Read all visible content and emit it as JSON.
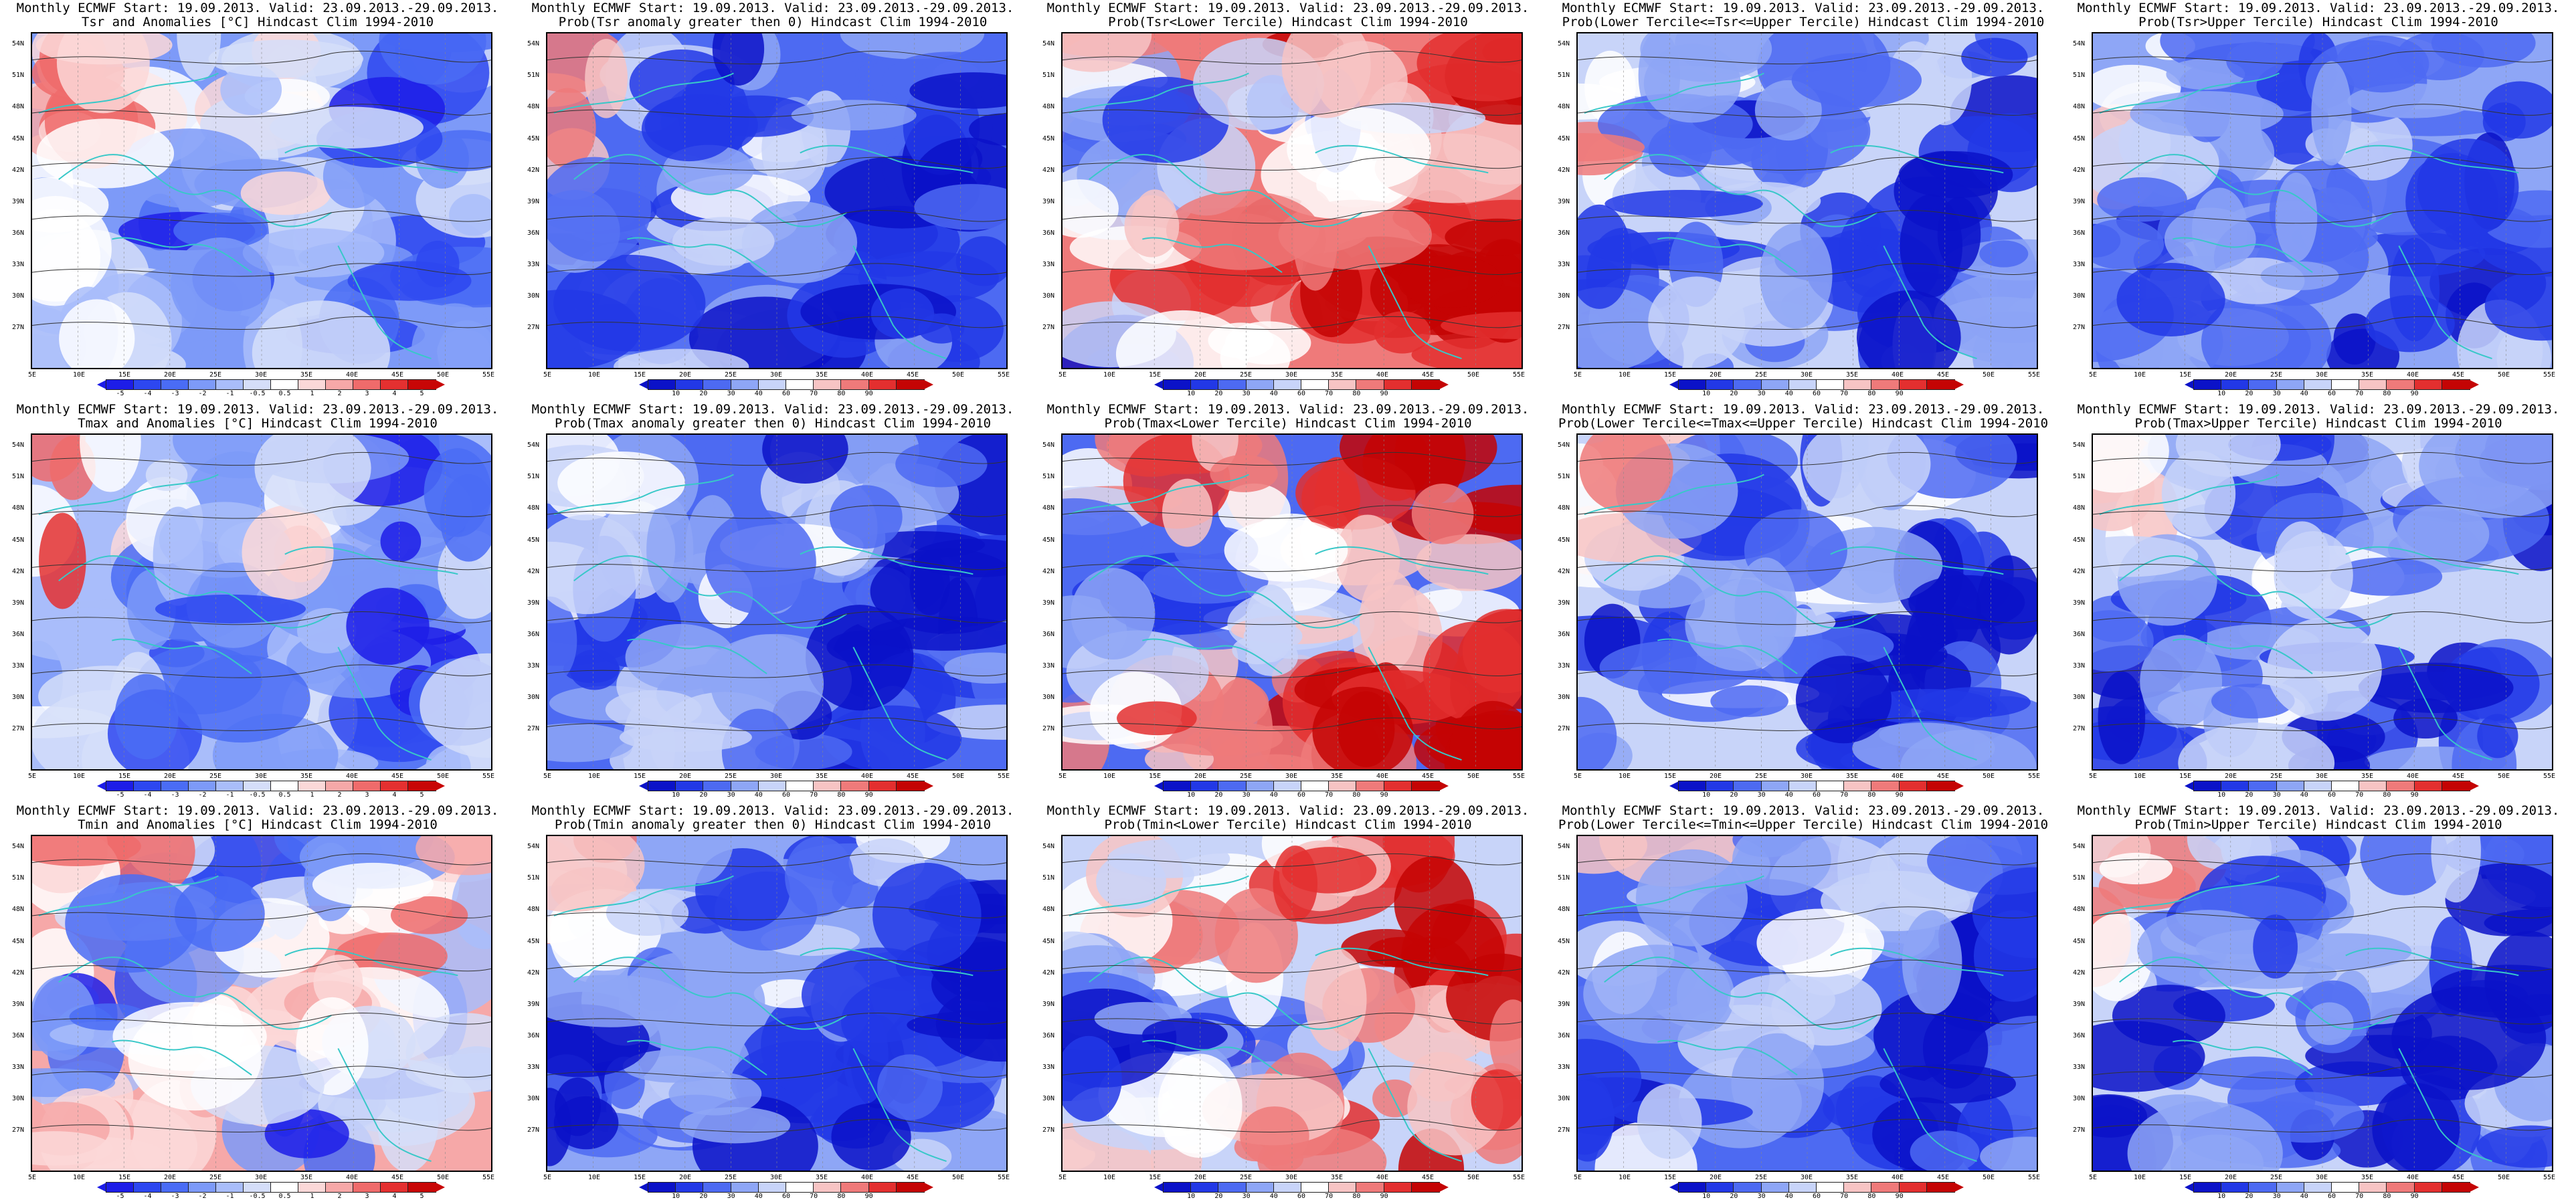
{
  "colors": {
    "anomaly_scale": [
      "#1d1de8",
      "#2d47f0",
      "#4a6cf5",
      "#7d9af8",
      "#a9bdfa",
      "#d5def9",
      "#ffffff",
      "#fbd8d8",
      "#f6a8a8",
      "#ef6b6b",
      "#e43030",
      "#c80606"
    ],
    "prob_scale": [
      "#0b12c8",
      "#2238e6",
      "#4d6af2",
      "#8ea6f6",
      "#c8d4f9",
      "#ffffff",
      "#f7c4c4",
      "#ef7a7a",
      "#e32f2f",
      "#c40404"
    ],
    "coast": "#38c8c8",
    "contour": "#333333"
  },
  "map": {
    "lat_labels": [
      "54N",
      "51N",
      "48N",
      "45N",
      "42N",
      "39N",
      "36N",
      "33N",
      "30N",
      "27N"
    ],
    "lon_labels": [
      "5E",
      "10E",
      "15E",
      "20E",
      "25E",
      "30E",
      "35E",
      "40E",
      "45E",
      "50E",
      "55E"
    ]
  },
  "colorbars": {
    "anomaly": [
      "-5",
      "-4",
      "-3",
      "-2",
      "-1",
      "-0.5",
      "0.5",
      "1",
      "2",
      "3",
      "4",
      "5"
    ],
    "prob": [
      "10",
      "20",
      "30",
      "40",
      "60",
      "70",
      "80",
      "90"
    ]
  },
  "panels": [
    {
      "title1": "Monthly ECMWF Start: 19.09.2013. Valid: 23.09.2013.-29.09.2013.",
      "title2": "Tsr and Anomalies [°C] Hindcast Clim 1994-2010",
      "scale": "anomaly",
      "tone": "coolmix"
    },
    {
      "title1": "Monthly ECMWF Start: 19.09.2013. Valid: 23.09.2013.-29.09.2013.",
      "title2": "Prob(Tsr anomaly greater then 0) Hindcast Clim 1994-2010",
      "scale": "prob",
      "tone": "blue"
    },
    {
      "title1": "Monthly ECMWF Start: 19.09.2013. Valid: 23.09.2013.-29.09.2013.",
      "title2": "Prob(Tsr<Lower Tercile) Hindcast Clim 1994-2010",
      "scale": "prob",
      "tone": "red"
    },
    {
      "title1": "Monthly ECMWF Start: 19.09.2013. Valid: 23.09.2013.-29.09.2013.",
      "title2": "Prob(Lower Tercile<=Tsr<=Upper Tercile) Hindcast Clim 1994-2010",
      "scale": "prob",
      "tone": "blue"
    },
    {
      "title1": "Monthly ECMWF Start: 19.09.2013. Valid: 23.09.2013.-29.09.2013.",
      "title2": "Prob(Tsr>Upper Tercile) Hindcast Clim 1994-2010",
      "scale": "prob",
      "tone": "blue"
    },
    {
      "title1": "Monthly ECMWF Start: 19.09.2013. Valid: 23.09.2013.-29.09.2013.",
      "title2": "Tmax and Anomalies [°C] Hindcast Clim 1994-2010",
      "scale": "anomaly",
      "tone": "coolmix"
    },
    {
      "title1": "Monthly ECMWF Start: 19.09.2013. Valid: 23.09.2013.-29.09.2013.",
      "title2": "Prob(Tmax anomaly greater then 0) Hindcast Clim 1994-2010",
      "scale": "prob",
      "tone": "blue"
    },
    {
      "title1": "Monthly ECMWF Start: 19.09.2013. Valid: 23.09.2013.-29.09.2013.",
      "title2": "Prob(Tmax<Lower Tercile) Hindcast Clim 1994-2010",
      "scale": "prob",
      "tone": "red"
    },
    {
      "title1": "Monthly ECMWF Start: 19.09.2013. Valid: 23.09.2013.-29.09.2013.",
      "title2": "Prob(Lower Tercile<=Tmax<=Upper Tercile) Hindcast Clim 1994-2010",
      "scale": "prob",
      "tone": "blue"
    },
    {
      "title1": "Monthly ECMWF Start: 19.09.2013. Valid: 23.09.2013.-29.09.2013.",
      "title2": "Prob(Tmax>Upper Tercile) Hindcast Clim 1994-2010",
      "scale": "prob",
      "tone": "blue"
    },
    {
      "title1": "Monthly ECMWF Start: 19.09.2013. Valid: 23.09.2013.-29.09.2013.",
      "title2": "Tmin and Anomalies [°C] Hindcast Clim 1994-2010",
      "scale": "anomaly",
      "tone": "mixed"
    },
    {
      "title1": "Monthly ECMWF Start: 19.09.2013. Valid: 23.09.2013.-29.09.2013.",
      "title2": "Prob(Tmin anomaly greater then 0) Hindcast Clim 1994-2010",
      "scale": "prob",
      "tone": "blue"
    },
    {
      "title1": "Monthly ECMWF Start: 19.09.2013. Valid: 23.09.2013.-29.09.2013.",
      "title2": "Prob(Tmin<Lower Tercile) Hindcast Clim 1994-2010",
      "scale": "prob",
      "tone": "red"
    },
    {
      "title1": "Monthly ECMWF Start: 19.09.2013. Valid: 23.09.2013.-29.09.2013.",
      "title2": "Prob(Lower Tercile<=Tmin<=Upper Tercile) Hindcast Clim 1994-2010",
      "scale": "prob",
      "tone": "blue"
    },
    {
      "title1": "Monthly ECMWF Start: 19.09.2013. Valid: 23.09.2013.-29.09.2013.",
      "title2": "Prob(Tmin>Upper Tercile) Hindcast Clim 1994-2010",
      "scale": "prob",
      "tone": "blue"
    }
  ]
}
